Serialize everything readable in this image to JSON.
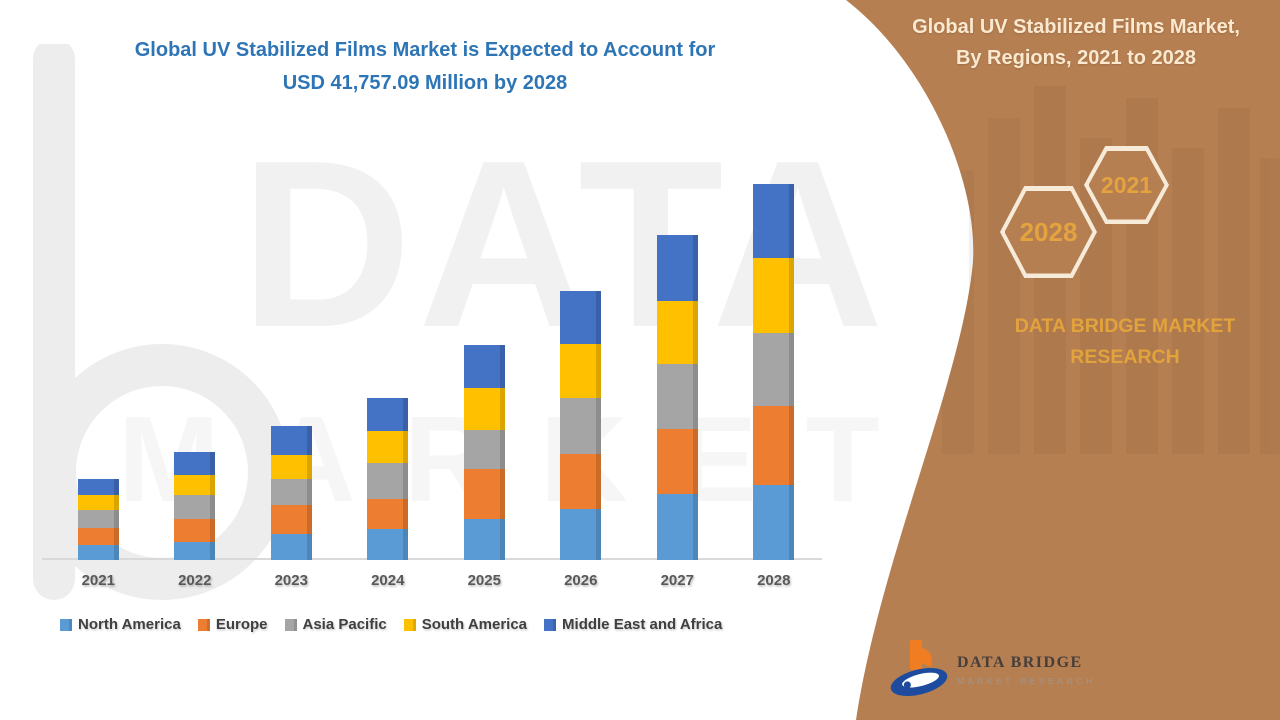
{
  "title": {
    "line1": "Global UV Stabilized Films Market is Expected to Account for",
    "line2": "USD 41,757.09 Million by 2028"
  },
  "watermark": {
    "big_letter": "b",
    "row1": "DATA BRIDGE",
    "row2": "MARKET RESEARCH"
  },
  "panel": {
    "heading_line1": "Global UV Stabilized Films Market,",
    "heading_line2": "By Regions, 2021 to 2028",
    "hexagons": [
      {
        "label": "2028"
      },
      {
        "label": "2021"
      }
    ],
    "brand_line1": "DATA BRIDGE MARKET",
    "brand_line2": "RESEARCH",
    "colors": {
      "background": "#B67F52",
      "accent_gold": "#E2A23C",
      "hex_border": "#F6EBD9",
      "heading_text": "#FBE9CF"
    }
  },
  "logo": {
    "name": "DATA BRIDGE",
    "tagline": "MARKET RESEARCH"
  },
  "chart_data": {
    "type": "bar",
    "stacked": true,
    "title": "Global UV Stabilized Films Market is Expected to Account for USD 41,757.09 Million by 2028",
    "unit": "USD Million",
    "highlight_total_2028": 41757.09,
    "values_estimated_from_bar_heights": true,
    "grid": false,
    "y_axis_visible": false,
    "legend_position": "bottom",
    "categories": [
      "2021",
      "2022",
      "2023",
      "2024",
      "2025",
      "2026",
      "2027",
      "2028"
    ],
    "series": [
      {
        "name": "North America",
        "color": "#5B9BD5",
        "values": [
          1675,
          2010,
          2900,
          3460,
          4580,
          5690,
          7370,
          8370
        ]
      },
      {
        "name": "Europe",
        "color": "#ED7D31",
        "values": [
          1900,
          2570,
          3240,
          3350,
          5580,
          6140,
          7150,
          8710
        ]
      },
      {
        "name": "Asia Pacific",
        "color": "#A5A5A5",
        "values": [
          2010,
          2680,
          2900,
          3910,
          4240,
          6140,
          7260,
          8150
        ]
      },
      {
        "name": "South America",
        "color": "#FFC000",
        "values": [
          1675,
          2230,
          2680,
          3570,
          4690,
          6030,
          7030,
          8260
        ]
      },
      {
        "name": "Middle East and Africa",
        "color": "#4472C4",
        "values": [
          1785,
          2460,
          3130,
          3680,
          4800,
          5920,
          7260,
          8267.09
        ]
      }
    ],
    "totals": [
      9045,
      11950,
      14850,
      17970,
      23890,
      29920,
      36070,
      41757.09
    ]
  }
}
